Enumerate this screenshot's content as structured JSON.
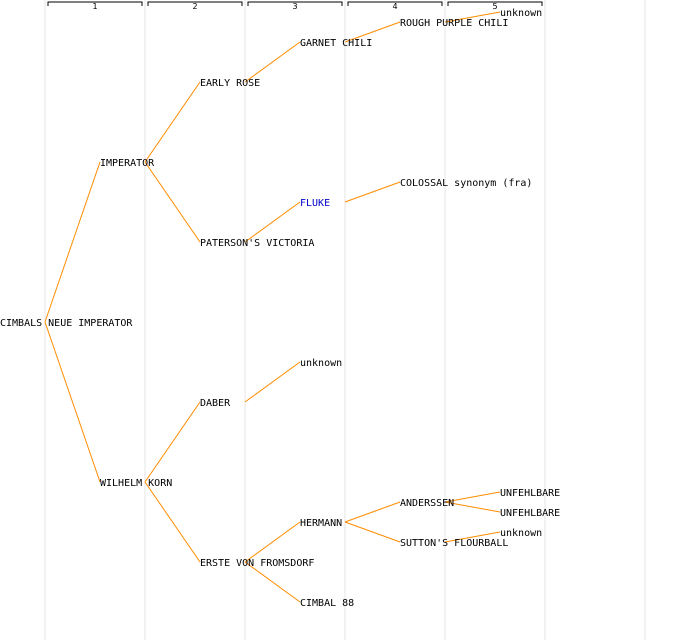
{
  "generation_labels": [
    "1",
    "2",
    "3",
    "4",
    "5"
  ],
  "colors": {
    "edge": "#ff8c00",
    "column_line": "#e4e4e4",
    "header_bracket": "#000000",
    "text": "#000000",
    "link_text": "#0000cc"
  },
  "root": {
    "label": "CIMBALS NEUE IMPERATOR",
    "children": [
      {
        "label": "IMPERATOR",
        "children": [
          {
            "label": "EARLY ROSE",
            "children": [
              {
                "label": "GARNET CHILI",
                "children": [
                  {
                    "label": "ROUGH PURPLE CHILI",
                    "children": [
                      {
                        "label": "unknown"
                      }
                    ]
                  }
                ]
              }
            ]
          },
          {
            "label": "PATERSON'S VICTORIA",
            "children": [
              {
                "label": "FLUKE",
                "link": true,
                "children": [
                  {
                    "label": "COLOSSAL synonym (fra)"
                  }
                ]
              }
            ]
          }
        ]
      },
      {
        "label": "WILHELM KORN",
        "children": [
          {
            "label": "DABER",
            "children": [
              {
                "label": "unknown"
              }
            ]
          },
          {
            "label": "ERSTE VON FROMSDORF",
            "children": [
              {
                "label": "HERMANN",
                "children": [
                  {
                    "label": "ANDERSSEN",
                    "children": [
                      {
                        "label": "UNFEHLBARE"
                      },
                      {
                        "label": "UNFEHLBARE"
                      }
                    ]
                  },
                  {
                    "label": "SUTTON'S FLOURBALL",
                    "children": [
                      {
                        "label": "unknown"
                      }
                    ]
                  }
                ]
              },
              {
                "label": "CIMBAL 88"
              }
            ]
          }
        ]
      }
    ]
  }
}
